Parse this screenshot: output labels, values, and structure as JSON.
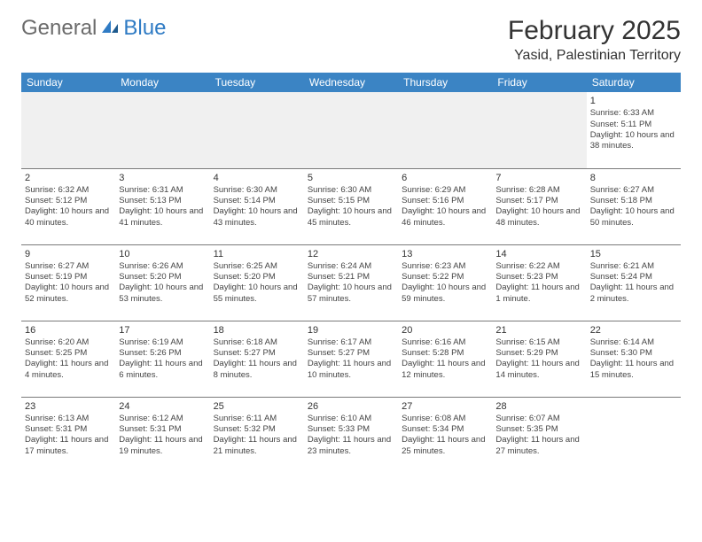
{
  "logo": {
    "text1": "General",
    "text2": "Blue"
  },
  "title": "February 2025",
  "location": "Yasid, Palestinian Territory",
  "colors": {
    "header_bg": "#3b84c4",
    "header_text": "#ffffff",
    "logo_gray": "#6b6b6b",
    "logo_blue": "#2f7bc4",
    "cell_border": "#7a7a7a",
    "blank_bg": "#f0f0f0"
  },
  "day_headers": [
    "Sunday",
    "Monday",
    "Tuesday",
    "Wednesday",
    "Thursday",
    "Friday",
    "Saturday"
  ],
  "weeks": [
    [
      null,
      null,
      null,
      null,
      null,
      null,
      {
        "n": "1",
        "sr": "6:33 AM",
        "ss": "5:11 PM",
        "dl": "10 hours and 38 minutes."
      }
    ],
    [
      {
        "n": "2",
        "sr": "6:32 AM",
        "ss": "5:12 PM",
        "dl": "10 hours and 40 minutes."
      },
      {
        "n": "3",
        "sr": "6:31 AM",
        "ss": "5:13 PM",
        "dl": "10 hours and 41 minutes."
      },
      {
        "n": "4",
        "sr": "6:30 AM",
        "ss": "5:14 PM",
        "dl": "10 hours and 43 minutes."
      },
      {
        "n": "5",
        "sr": "6:30 AM",
        "ss": "5:15 PM",
        "dl": "10 hours and 45 minutes."
      },
      {
        "n": "6",
        "sr": "6:29 AM",
        "ss": "5:16 PM",
        "dl": "10 hours and 46 minutes."
      },
      {
        "n": "7",
        "sr": "6:28 AM",
        "ss": "5:17 PM",
        "dl": "10 hours and 48 minutes."
      },
      {
        "n": "8",
        "sr": "6:27 AM",
        "ss": "5:18 PM",
        "dl": "10 hours and 50 minutes."
      }
    ],
    [
      {
        "n": "9",
        "sr": "6:27 AM",
        "ss": "5:19 PM",
        "dl": "10 hours and 52 minutes."
      },
      {
        "n": "10",
        "sr": "6:26 AM",
        "ss": "5:20 PM",
        "dl": "10 hours and 53 minutes."
      },
      {
        "n": "11",
        "sr": "6:25 AM",
        "ss": "5:20 PM",
        "dl": "10 hours and 55 minutes."
      },
      {
        "n": "12",
        "sr": "6:24 AM",
        "ss": "5:21 PM",
        "dl": "10 hours and 57 minutes."
      },
      {
        "n": "13",
        "sr": "6:23 AM",
        "ss": "5:22 PM",
        "dl": "10 hours and 59 minutes."
      },
      {
        "n": "14",
        "sr": "6:22 AM",
        "ss": "5:23 PM",
        "dl": "11 hours and 1 minute."
      },
      {
        "n": "15",
        "sr": "6:21 AM",
        "ss": "5:24 PM",
        "dl": "11 hours and 2 minutes."
      }
    ],
    [
      {
        "n": "16",
        "sr": "6:20 AM",
        "ss": "5:25 PM",
        "dl": "11 hours and 4 minutes."
      },
      {
        "n": "17",
        "sr": "6:19 AM",
        "ss": "5:26 PM",
        "dl": "11 hours and 6 minutes."
      },
      {
        "n": "18",
        "sr": "6:18 AM",
        "ss": "5:27 PM",
        "dl": "11 hours and 8 minutes."
      },
      {
        "n": "19",
        "sr": "6:17 AM",
        "ss": "5:27 PM",
        "dl": "11 hours and 10 minutes."
      },
      {
        "n": "20",
        "sr": "6:16 AM",
        "ss": "5:28 PM",
        "dl": "11 hours and 12 minutes."
      },
      {
        "n": "21",
        "sr": "6:15 AM",
        "ss": "5:29 PM",
        "dl": "11 hours and 14 minutes."
      },
      {
        "n": "22",
        "sr": "6:14 AM",
        "ss": "5:30 PM",
        "dl": "11 hours and 15 minutes."
      }
    ],
    [
      {
        "n": "23",
        "sr": "6:13 AM",
        "ss": "5:31 PM",
        "dl": "11 hours and 17 minutes."
      },
      {
        "n": "24",
        "sr": "6:12 AM",
        "ss": "5:31 PM",
        "dl": "11 hours and 19 minutes."
      },
      {
        "n": "25",
        "sr": "6:11 AM",
        "ss": "5:32 PM",
        "dl": "11 hours and 21 minutes."
      },
      {
        "n": "26",
        "sr": "6:10 AM",
        "ss": "5:33 PM",
        "dl": "11 hours and 23 minutes."
      },
      {
        "n": "27",
        "sr": "6:08 AM",
        "ss": "5:34 PM",
        "dl": "11 hours and 25 minutes."
      },
      {
        "n": "28",
        "sr": "6:07 AM",
        "ss": "5:35 PM",
        "dl": "11 hours and 27 minutes."
      },
      null
    ]
  ],
  "labels": {
    "sunrise": "Sunrise:",
    "sunset": "Sunset:",
    "daylight": "Daylight:"
  }
}
